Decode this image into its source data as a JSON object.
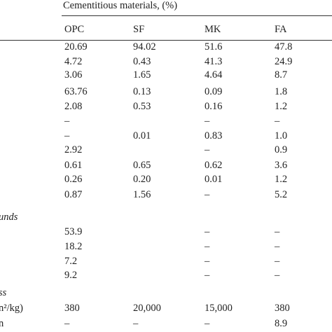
{
  "table": {
    "group_header": "Cementitious materials, (%)",
    "columns": [
      "OPC",
      "SF",
      "MK",
      "FA"
    ],
    "rows": [
      [
        null,
        "20.69",
        "94.02",
        "51.6",
        "47.8"
      ],
      [
        null,
        "4.72",
        "0.43",
        "41.3",
        "24.9"
      ],
      [
        null,
        "3.06",
        "1.65",
        "4.64",
        "8.7"
      ],
      [
        null,
        "63.76",
        "0.13",
        "0.09",
        "1.8"
      ],
      [
        null,
        "2.08",
        "0.53",
        "0.16",
        "1.2"
      ],
      [
        null,
        "–",
        null,
        "–",
        "–"
      ],
      [
        null,
        "–",
        "0.01",
        "0.83",
        "1.0"
      ],
      [
        null,
        "2.92",
        null,
        "–",
        "0.9"
      ],
      [
        null,
        "0.61",
        "0.65",
        "0.62",
        "3.6"
      ],
      [
        null,
        "0.26",
        "0.20",
        "0.01",
        "1.2"
      ],
      [
        null,
        "0.87",
        "1.56",
        "–",
        "5.2"
      ],
      [
        "unds",
        null,
        null,
        null,
        null
      ],
      [
        null,
        "53.9",
        null,
        "–",
        "–"
      ],
      [
        null,
        "18.2",
        null,
        "–",
        "–"
      ],
      [
        null,
        "7.2",
        null,
        "–",
        "–"
      ],
      [
        null,
        "9.2",
        null,
        "–",
        "–"
      ],
      [
        "ss",
        null,
        null,
        null,
        null
      ],
      [
        "n²/kg)",
        "380",
        "20,000",
        "15,000",
        "380"
      ],
      [
        "n",
        "–",
        "–",
        "–",
        "8.9"
      ]
    ]
  }
}
